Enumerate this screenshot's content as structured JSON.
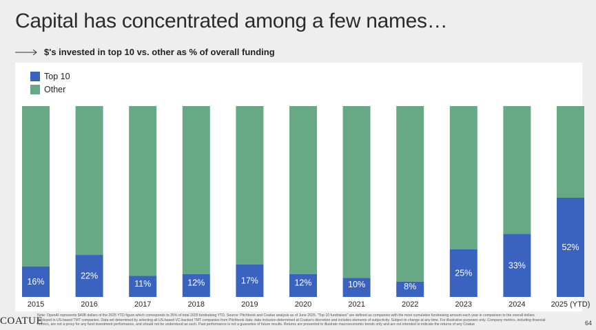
{
  "title": "Capital has concentrated among a few names…",
  "subtitle": "$'s invested in top 10 vs. other as % of overall funding",
  "colors": {
    "top10": "#3a63bf",
    "other": "#68a985",
    "label": "#ffffff"
  },
  "footer": {
    "logo": "COATUE",
    "footnote": "Note: OpenAI represents $40B dollars of the 2025 YTD figure which corresponds to 35% of total 2025 fundraising YTD. Source: Pitchbook and Coatue analysis as of June 2025. \"Top 10 fundraises\" are defined as companies with the most cumulative fundraising amount each year in comparison to the overall dollars deployed in US-based TMT companies. Data set determined by selecting all US-based VC-backed TMT companies from Pitchbook data; data inclusion determined at Coatue's discretion and includes elements of subjectivity. Subject to change at any time. For illustrative purposes only. Company metrics, including financial metrics, are not a proxy for any fund investment performance, and should not be understood as such. Past performance is not a guarantee of future results. Returns are presented to illustrate macroeconomic trends only and are not intended to indicate the returns of any Coatue",
    "page_number": "64"
  },
  "chart_data": {
    "type": "bar",
    "stacked": true,
    "categories": [
      "2015",
      "2016",
      "2017",
      "2018",
      "2019",
      "2020",
      "2021",
      "2022",
      "2023",
      "2024",
      "2025 (YTD)"
    ],
    "series": [
      {
        "name": "Top 10",
        "values": [
          16,
          22,
          11,
          12,
          17,
          12,
          10,
          8,
          25,
          33,
          52
        ]
      },
      {
        "name": "Other",
        "values": [
          84,
          78,
          89,
          88,
          83,
          88,
          90,
          92,
          75,
          67,
          48
        ]
      }
    ],
    "data_labels": [
      "16%",
      "22%",
      "11%",
      "12%",
      "17%",
      "12%",
      "10%",
      "8%",
      "25%",
      "33%",
      "52%"
    ],
    "ylim": [
      0,
      100
    ],
    "legend_position": "top-left",
    "grid": false
  }
}
